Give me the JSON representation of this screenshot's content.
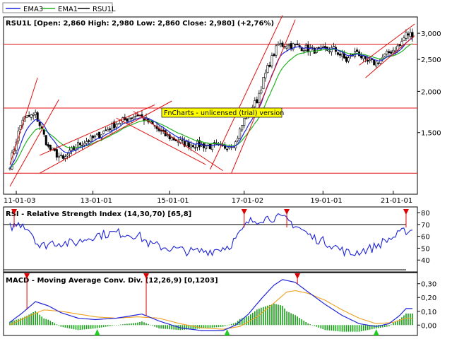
{
  "legend": [
    {
      "label": "EMA3",
      "color": "#1f24d8"
    },
    {
      "label": "EMA1",
      "color": "#22b222"
    },
    {
      "label": "RSU1L",
      "color": "#000000"
    }
  ],
  "watermark": "FnCharts - unlicensed (trial) version",
  "colors": {
    "ema3": "#1f24d8",
    "ema1": "#22b222",
    "trendline": "#e01010",
    "macd_signal": "#f0a020",
    "macd_hist": "#15a015",
    "signal_up": "#22cc22",
    "signal_down": "#dd0000",
    "label_box": "#ffff00"
  },
  "chart_data": [
    {
      "type": "candlestick",
      "name": "RSU1L",
      "title": "RSU1L [Open: 2,860  High: 2,980  Low: 2,860  Close: 2,980] (+2,76%)",
      "x_tick_labels": [
        "11-01-03",
        "13-01-01",
        "15-01-01",
        "17-01-02",
        "19-01-01",
        "21-01-01"
      ],
      "y_ticks": [
        1500,
        2000,
        2500,
        3000
      ],
      "y_tick_labels": [
        "1,500",
        "2,000",
        "2,500",
        "3,000"
      ],
      "ylim": [
        1000,
        3200
      ],
      "y_scale": "log",
      "last": {
        "open": 2860,
        "high": 2980,
        "low": 2860,
        "close": 2980,
        "change_pct": 2.76
      },
      "horizontal_levels": [
        1130,
        1780,
        2780
      ],
      "series": [
        {
          "name": "RSU1L"
        },
        {
          "name": "EMA3"
        },
        {
          "name": "EMA1"
        }
      ],
      "keypoints": [
        [
          0,
          1200
        ],
        [
          6,
          1650
        ],
        [
          12,
          1700
        ],
        [
          18,
          1350
        ],
        [
          25,
          1240
        ],
        [
          32,
          1380
        ],
        [
          40,
          1450
        ],
        [
          50,
          1600
        ],
        [
          60,
          1700
        ],
        [
          66,
          1600
        ],
        [
          72,
          1480
        ],
        [
          82,
          1390
        ],
        [
          92,
          1370
        ],
        [
          100,
          1350
        ],
        [
          106,
          1400
        ],
        [
          110,
          1640
        ],
        [
          116,
          1880
        ],
        [
          121,
          2350
        ],
        [
          126,
          2770
        ],
        [
          132,
          2760
        ],
        [
          138,
          2710
        ],
        [
          145,
          2650
        ],
        [
          152,
          2690
        ],
        [
          158,
          2480
        ],
        [
          163,
          2650
        ],
        [
          167,
          2450
        ],
        [
          172,
          2440
        ],
        [
          178,
          2620
        ],
        [
          183,
          2750
        ],
        [
          186,
          2980
        ]
      ],
      "trend_lines": [
        [
          [
            0,
            1200
          ],
          [
            13,
            2200
          ]
        ],
        [
          [
            0,
            1030
          ],
          [
            23,
            1890
          ]
        ],
        [
          [
            14,
            1280
          ],
          [
            68,
            1820
          ]
        ],
        [
          [
            14,
            1130
          ],
          [
            76,
            1870
          ]
        ],
        [
          [
            58,
            1740
          ],
          [
            100,
            1150
          ]
        ],
        [
          [
            50,
            1660
          ],
          [
            92,
            1200
          ]
        ],
        [
          [
            94,
            1160
          ],
          [
            128,
            3400
          ]
        ],
        [
          [
            104,
            1130
          ],
          [
            134,
            3300
          ]
        ],
        [
          [
            167,
            2200
          ],
          [
            190,
            2950
          ]
        ],
        [
          [
            164,
            2400
          ],
          [
            190,
            3200
          ]
        ]
      ]
    },
    {
      "type": "line",
      "name": "RSI",
      "title": "RSI - Relative Strength Index (14,30,70) [65,8]",
      "y_ticks": [
        40,
        50,
        60,
        70,
        80
      ],
      "ylim": [
        33,
        83
      ],
      "reference_levels": [
        30,
        70
      ],
      "keypoints": [
        [
          0,
          68
        ],
        [
          6,
          71
        ],
        [
          10,
          64
        ],
        [
          14,
          51
        ],
        [
          20,
          55
        ],
        [
          30,
          54
        ],
        [
          40,
          61
        ],
        [
          50,
          63
        ],
        [
          60,
          61
        ],
        [
          66,
          53
        ],
        [
          75,
          50
        ],
        [
          85,
          47
        ],
        [
          95,
          48
        ],
        [
          103,
          52
        ],
        [
          108,
          62
        ],
        [
          112,
          72
        ],
        [
          118,
          75
        ],
        [
          124,
          76
        ],
        [
          130,
          74
        ],
        [
          136,
          67
        ],
        [
          142,
          59
        ],
        [
          150,
          54
        ],
        [
          155,
          49
        ],
        [
          160,
          45
        ],
        [
          165,
          48
        ],
        [
          170,
          50
        ],
        [
          176,
          56
        ],
        [
          181,
          60
        ],
        [
          186,
          65
        ]
      ]
    },
    {
      "type": "line",
      "name": "MACD",
      "title": "MACD - Moving Average Conv. Div. (12,26,9) [0,1203]",
      "y_ticks": [
        0.0,
        0.1,
        0.2,
        0.3
      ],
      "y_tick_labels": [
        "0,00",
        "0,10",
        "0,20",
        "0,30"
      ],
      "ylim": [
        -0.06,
        0.36
      ],
      "series_keypoints": {
        "MACD": [
          [
            0,
            0.02
          ],
          [
            6,
            0.09
          ],
          [
            12,
            0.17
          ],
          [
            18,
            0.14
          ],
          [
            24,
            0.09
          ],
          [
            32,
            0.05
          ],
          [
            40,
            0.04
          ],
          [
            50,
            0.05
          ],
          [
            58,
            0.07
          ],
          [
            62,
            0.08
          ],
          [
            70,
            0.03
          ],
          [
            80,
            -0.02
          ],
          [
            90,
            -0.04
          ],
          [
            100,
            -0.04
          ],
          [
            106,
            0.0
          ],
          [
            112,
            0.08
          ],
          [
            118,
            0.19
          ],
          [
            124,
            0.29
          ],
          [
            128,
            0.33
          ],
          [
            134,
            0.31
          ],
          [
            140,
            0.24
          ],
          [
            148,
            0.15
          ],
          [
            156,
            0.07
          ],
          [
            164,
            0.01
          ],
          [
            172,
            -0.01
          ],
          [
            178,
            0.01
          ],
          [
            183,
            0.07
          ],
          [
            186,
            0.12
          ]
        ],
        "Signal": [
          [
            0,
            0.0
          ],
          [
            8,
            0.06
          ],
          [
            16,
            0.11
          ],
          [
            24,
            0.1
          ],
          [
            32,
            0.08
          ],
          [
            40,
            0.06
          ],
          [
            50,
            0.05
          ],
          [
            60,
            0.06
          ],
          [
            70,
            0.05
          ],
          [
            80,
            0.01
          ],
          [
            90,
            -0.02
          ],
          [
            100,
            -0.03
          ],
          [
            108,
            -0.01
          ],
          [
            116,
            0.06
          ],
          [
            124,
            0.16
          ],
          [
            130,
            0.24
          ],
          [
            134,
            0.25
          ],
          [
            140,
            0.23
          ],
          [
            148,
            0.18
          ],
          [
            156,
            0.11
          ],
          [
            164,
            0.05
          ],
          [
            172,
            0.01
          ],
          [
            180,
            0.02
          ],
          [
            186,
            0.05
          ]
        ]
      }
    }
  ],
  "signals": {
    "down": [
      2,
      110,
      130,
      186
    ],
    "macd_down": [
      8,
      64,
      135
    ],
    "macd_up": [
      41,
      102,
      172
    ]
  }
}
